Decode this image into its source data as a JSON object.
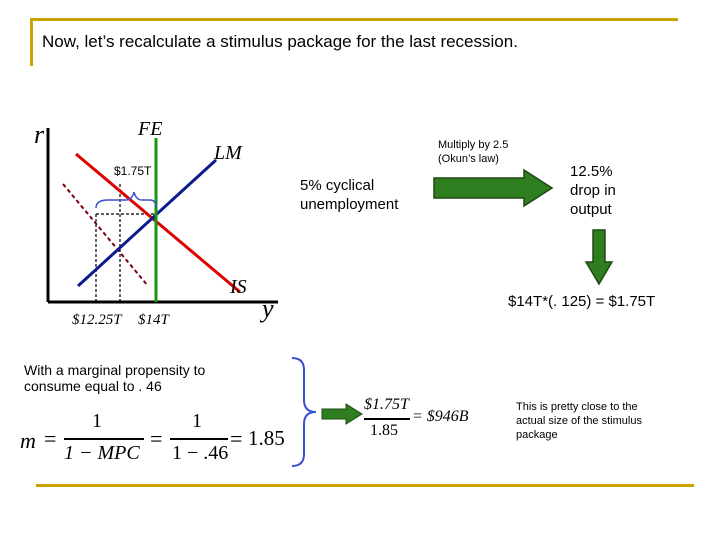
{
  "slide": {
    "title": "Now, let’s recalculate a stimulus package for the last recession.",
    "accent_color": "#c9a400"
  },
  "graph": {
    "y_axis_label": "r",
    "x_axis_label": "y",
    "fe_label": "FE",
    "lm_label": "LM",
    "is_label": "IS",
    "gap_label": "$1.75T",
    "x_tick_1": "$12.25T",
    "x_tick_2": "$14T",
    "colors": {
      "lm": "#0b1a8c",
      "is": "#e00000",
      "fe": "#119911",
      "shifted_is": "#7a0010"
    }
  },
  "flow": {
    "unemployment_text": "5% cyclical unemployment",
    "multiply_note": "Multiply by 2.5 (Okun’s law)",
    "drop_text": "12.5% drop in output",
    "calc_text": "$14T*(. 125) = $1.75T",
    "arrow_color": "#2e7d1f"
  },
  "multiplier": {
    "mpc_note": "With a marginal propensity to consume equal to . 46",
    "m_label": "m",
    "eq1": "=",
    "one": "1",
    "denom1": "1 − MPC",
    "eq2": "=",
    "denom2": "1 − .46",
    "eq3": "=",
    "result": "1.85",
    "stim_num": "$1.75T",
    "stim_den": "1.85",
    "stim_result": "= $946B",
    "closing_note": "This is pretty close to the actual size of the stimulus package"
  }
}
